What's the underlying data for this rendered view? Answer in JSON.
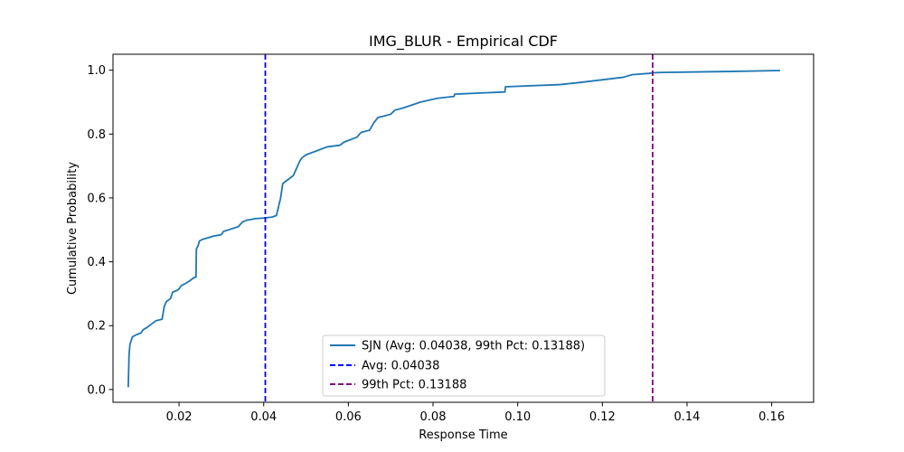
{
  "chart_data": {
    "type": "line",
    "title": "IMG_BLUR - Empirical CDF",
    "xlabel": "Response Time",
    "ylabel": "Cumulative Probability",
    "xlim": [
      0.0044,
      0.1699
    ],
    "ylim": [
      -0.04,
      1.05
    ],
    "xticks": [
      0.02,
      0.04,
      0.06,
      0.08,
      0.1,
      0.12,
      0.14,
      0.16
    ],
    "xtick_labels": [
      "0.02",
      "0.04",
      "0.06",
      "0.08",
      "0.10",
      "0.12",
      "0.14",
      "0.16"
    ],
    "yticks": [
      0.0,
      0.2,
      0.4,
      0.6,
      0.8,
      1.0
    ],
    "ytick_labels": [
      "0.0",
      "0.2",
      "0.4",
      "0.6",
      "0.8",
      "1.0"
    ],
    "grid": false,
    "legend_position": "lower center",
    "series": [
      {
        "name": "SJN (Avg: 0.04038, 99th Pct: 0.13188)",
        "color": "#1f77b4",
        "style": "solid",
        "x": [
          0.008,
          0.0081,
          0.0082,
          0.0084,
          0.0086,
          0.009,
          0.01,
          0.011,
          0.0115,
          0.0125,
          0.0135,
          0.0145,
          0.016,
          0.0165,
          0.017,
          0.018,
          0.0185,
          0.0195,
          0.02,
          0.0205,
          0.0215,
          0.0225,
          0.0235,
          0.024,
          0.0241,
          0.0245,
          0.0248,
          0.0255,
          0.028,
          0.03,
          0.0305,
          0.034,
          0.035,
          0.036,
          0.038,
          0.04,
          0.042,
          0.043,
          0.044,
          0.0445,
          0.045,
          0.0455,
          0.047,
          0.048,
          0.0485,
          0.049,
          0.05,
          0.052,
          0.055,
          0.058,
          0.059,
          0.06,
          0.062,
          0.063,
          0.065,
          0.066,
          0.067,
          0.068,
          0.07,
          0.071,
          0.073,
          0.077,
          0.081,
          0.085,
          0.0851,
          0.09,
          0.097,
          0.0971,
          0.11,
          0.115,
          0.125,
          0.127,
          0.131,
          0.1319,
          0.134,
          0.15,
          0.162
        ],
        "y": [
          0.007,
          0.06,
          0.11,
          0.14,
          0.15,
          0.165,
          0.172,
          0.177,
          0.187,
          0.195,
          0.205,
          0.215,
          0.22,
          0.26,
          0.275,
          0.285,
          0.305,
          0.31,
          0.315,
          0.325,
          0.332,
          0.34,
          0.35,
          0.352,
          0.44,
          0.45,
          0.465,
          0.47,
          0.48,
          0.485,
          0.495,
          0.51,
          0.525,
          0.53,
          0.535,
          0.537,
          0.54,
          0.545,
          0.6,
          0.645,
          0.65,
          0.655,
          0.67,
          0.7,
          0.715,
          0.725,
          0.735,
          0.745,
          0.76,
          0.765,
          0.775,
          0.78,
          0.79,
          0.805,
          0.812,
          0.835,
          0.852,
          0.855,
          0.862,
          0.875,
          0.882,
          0.9,
          0.912,
          0.918,
          0.925,
          0.928,
          0.932,
          0.948,
          0.955,
          0.962,
          0.978,
          0.986,
          0.99,
          0.992,
          0.993,
          0.996,
          0.999
        ]
      },
      {
        "name": "Avg: 0.04038",
        "color": "#0000ff",
        "style": "dashed",
        "vline_x": 0.04038
      },
      {
        "name": "99th Pct: 0.13188",
        "color": "#800080",
        "style": "dashed",
        "vline_x": 0.13188
      }
    ]
  }
}
